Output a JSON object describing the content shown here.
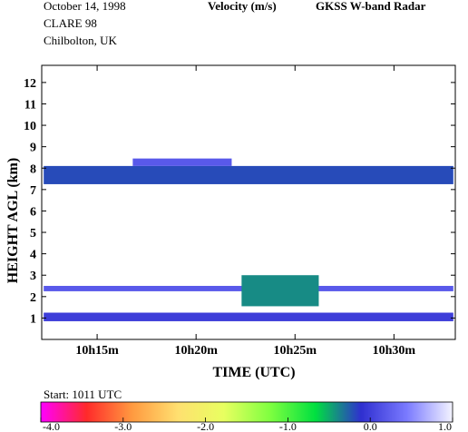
{
  "header": {
    "date": "October 14, 1998",
    "campaign": "CLARE 98",
    "location": "Chilbolton, UK",
    "quantity": "Velocity (m/s)",
    "instrument": "GKSS W-band Radar"
  },
  "chart_data": {
    "type": "heatmap",
    "title": "Velocity (m/s)",
    "xlabel": "TIME (UTC)",
    "ylabel": "HEIGHT AGL (km)",
    "x_unit": "minutes after 10h00 UTC",
    "xlim": [
      12.2,
      33.1
    ],
    "ylim": [
      0,
      12.8
    ],
    "x_ticks": [
      15,
      20,
      25,
      30
    ],
    "x_tick_labels": [
      "10h15m",
      "10h20m",
      "10h25m",
      "10h30m"
    ],
    "y_ticks": [
      1,
      2,
      3,
      4,
      5,
      6,
      7,
      8,
      9,
      10,
      11,
      12
    ],
    "y_tick_labels": [
      "1",
      "2",
      "3",
      "4",
      "5",
      "6",
      "7",
      "8",
      "9",
      "10",
      "11",
      "12"
    ],
    "start_label": "Start: 1011 UTC",
    "colorbar": {
      "range": [
        -4.0,
        1.0
      ],
      "tick_labels": [
        "-4.0",
        "-3.0",
        "-2.0",
        "-1.0",
        "0.0",
        "1.0"
      ],
      "stops": [
        "#ff00ff",
        "#ff2a2a",
        "#ff9a40",
        "#ffe070",
        "#e8ff60",
        "#80ff40",
        "#00e040",
        "#2f2fd0",
        "#7a7aff",
        "#f4f4ff"
      ]
    },
    "layers": [
      {
        "name": "upper cloud",
        "x": [
          12.3,
          33.0
        ],
        "y_bottom": 7.25,
        "y_top": 8.1,
        "velocity": -0.2
      },
      {
        "name": "upper cloud cap",
        "x": [
          16.8,
          21.8
        ],
        "y_bottom": 8.1,
        "y_top": 8.45,
        "velocity": 0.2
      },
      {
        "name": "mid layer",
        "x": [
          12.3,
          33.0
        ],
        "y_bottom": 2.25,
        "y_top": 2.5,
        "velocity": 0.2
      },
      {
        "name": "mid bump",
        "x": [
          22.3,
          26.2
        ],
        "y_bottom": 1.55,
        "y_top": 3.0,
        "velocity": -0.4
      },
      {
        "name": "low layer",
        "x": [
          12.3,
          33.0
        ],
        "y_bottom": 0.85,
        "y_top": 1.25,
        "velocity": 0.0
      }
    ]
  }
}
